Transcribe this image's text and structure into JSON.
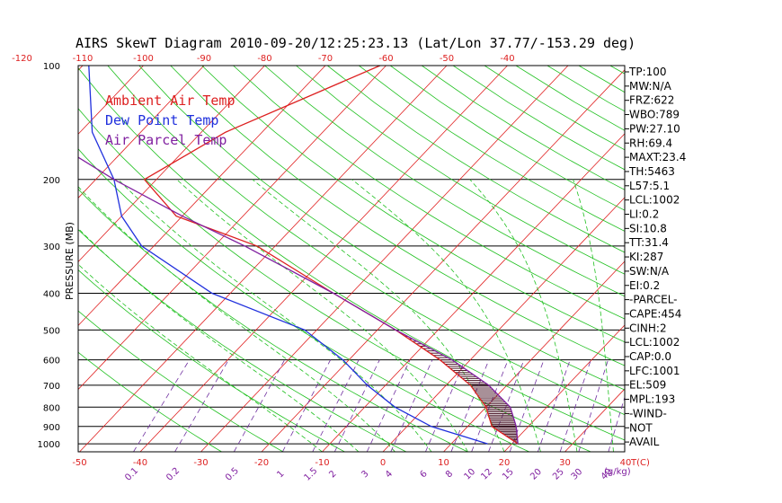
{
  "chart_data": {
    "type": "line",
    "title": "AIRS SkewT Diagram 2010-09-20/12:25:23.13 (Lat/Lon 37.77/-153.29 deg)",
    "ylabel": "PRESSURE (MB)",
    "xlabel": "T(C)",
    "mixing_ratio_label": "(g/kg)",
    "top_temp_ticks": [
      "-120",
      "-110",
      "-100",
      "-90",
      "-80",
      "-70",
      "-60",
      "-50",
      "-40"
    ],
    "bottom_temp_ticks": [
      "-50",
      "-40",
      "-30",
      "-20",
      "-10",
      "0",
      "10",
      "20",
      "30",
      "40"
    ],
    "mixing_ratio_ticks": [
      "0.1",
      "0.2",
      "0.5",
      "1",
      "1.5",
      "2",
      "3",
      "4",
      "6",
      "8",
      "10",
      "12",
      "15",
      "20",
      "25",
      "30",
      "40"
    ],
    "pressure_ticks": [
      "100",
      "200",
      "300",
      "400",
      "500",
      "600",
      "700",
      "800",
      "900",
      "1000"
    ],
    "legend": [
      {
        "label": "Ambient Air Temp",
        "color": "#dd2020"
      },
      {
        "label": "Dew Point Temp",
        "color": "#2030dd"
      },
      {
        "label": "Air Parcel Temp",
        "color": "#8020a0"
      }
    ],
    "series": [
      {
        "name": "Ambient Air Temp",
        "color": "#dd2020",
        "points": [
          [
            100,
            -61
          ],
          [
            150,
            -76
          ],
          [
            200,
            -82
          ],
          [
            250,
            -71
          ],
          [
            300,
            -53
          ],
          [
            400,
            -33
          ],
          [
            500,
            -17
          ],
          [
            600,
            -5
          ],
          [
            700,
            4
          ],
          [
            800,
            10
          ],
          [
            900,
            14
          ],
          [
            1000,
            21
          ]
        ]
      },
      {
        "name": "Dew Point Temp",
        "color": "#2030dd",
        "points": [
          [
            100,
            -109
          ],
          [
            150,
            -98
          ],
          [
            200,
            -87
          ],
          [
            250,
            -80
          ],
          [
            300,
            -72
          ],
          [
            400,
            -53
          ],
          [
            500,
            -32
          ],
          [
            600,
            -21
          ],
          [
            700,
            -13
          ],
          [
            800,
            -5
          ],
          [
            900,
            4
          ],
          [
            1000,
            16
          ]
        ]
      },
      {
        "name": "Air Parcel Temp",
        "color": "#8020a0",
        "points": [
          [
            100,
            -137
          ],
          [
            150,
            -107
          ],
          [
            200,
            -87
          ],
          [
            250,
            -70
          ],
          [
            300,
            -55
          ],
          [
            400,
            -33
          ],
          [
            500,
            -17
          ],
          [
            600,
            -3
          ],
          [
            700,
            7
          ],
          [
            800,
            14
          ],
          [
            900,
            18
          ],
          [
            1000,
            21
          ]
        ]
      }
    ],
    "stability_indices": [
      "TP:100",
      "MW:N/A",
      "FRZ:622",
      "WBO:789",
      "PW:27.10",
      "RH:69.4",
      "MAXT:23.4",
      "TH:5463",
      "L57:5.1",
      "LCL:1002",
      "LI:0.2",
      "SI:10.8",
      "TT:31.4",
      "KI:287",
      "SW:N/A",
      "EI:0.2",
      "-PARCEL-",
      "CAPE:454",
      "CINH:2",
      "LCL:1002",
      "CAP:0.0",
      "LFC:1001",
      "EL:509",
      "MPL:193",
      "-WIND-",
      "NOT",
      "AVAIL"
    ]
  }
}
